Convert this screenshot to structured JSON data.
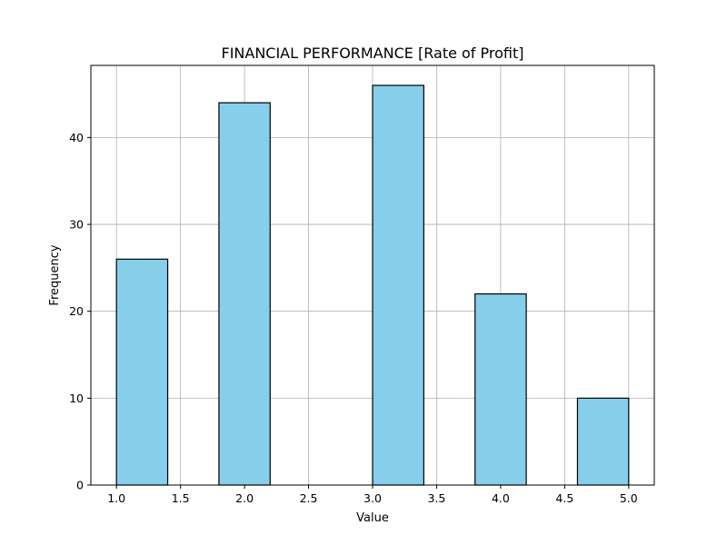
{
  "chart_data": {
    "type": "bar",
    "title": "FINANCIAL PERFORMANCE [Rate of Profit]",
    "xlabel": "Value",
    "ylabel": "Frequency",
    "xlim": [
      0.8,
      5.2
    ],
    "ylim": [
      0,
      48.3
    ],
    "grid": true,
    "bins": [
      {
        "start": 1.0,
        "end": 1.4,
        "value": 26
      },
      {
        "start": 1.4,
        "end": 1.8,
        "value": 0
      },
      {
        "start": 1.8,
        "end": 2.2,
        "value": 44
      },
      {
        "start": 2.2,
        "end": 2.6,
        "value": 0
      },
      {
        "start": 2.6,
        "end": 3.0,
        "value": 0
      },
      {
        "start": 3.0,
        "end": 3.4,
        "value": 46
      },
      {
        "start": 3.4,
        "end": 3.8,
        "value": 0
      },
      {
        "start": 3.8,
        "end": 4.2,
        "value": 22
      },
      {
        "start": 4.2,
        "end": 4.6,
        "value": 0
      },
      {
        "start": 4.6,
        "end": 5.0,
        "value": 10
      }
    ],
    "x_ticks": [
      "1.0",
      "1.5",
      "2.0",
      "2.5",
      "3.0",
      "3.5",
      "4.0",
      "4.5",
      "5.0"
    ],
    "y_ticks": [
      "0",
      "10",
      "20",
      "30",
      "40"
    ],
    "colors": {
      "bar_fill": "#87CEEB",
      "bar_edge": "#000000",
      "grid": "#b0b0b0"
    }
  }
}
